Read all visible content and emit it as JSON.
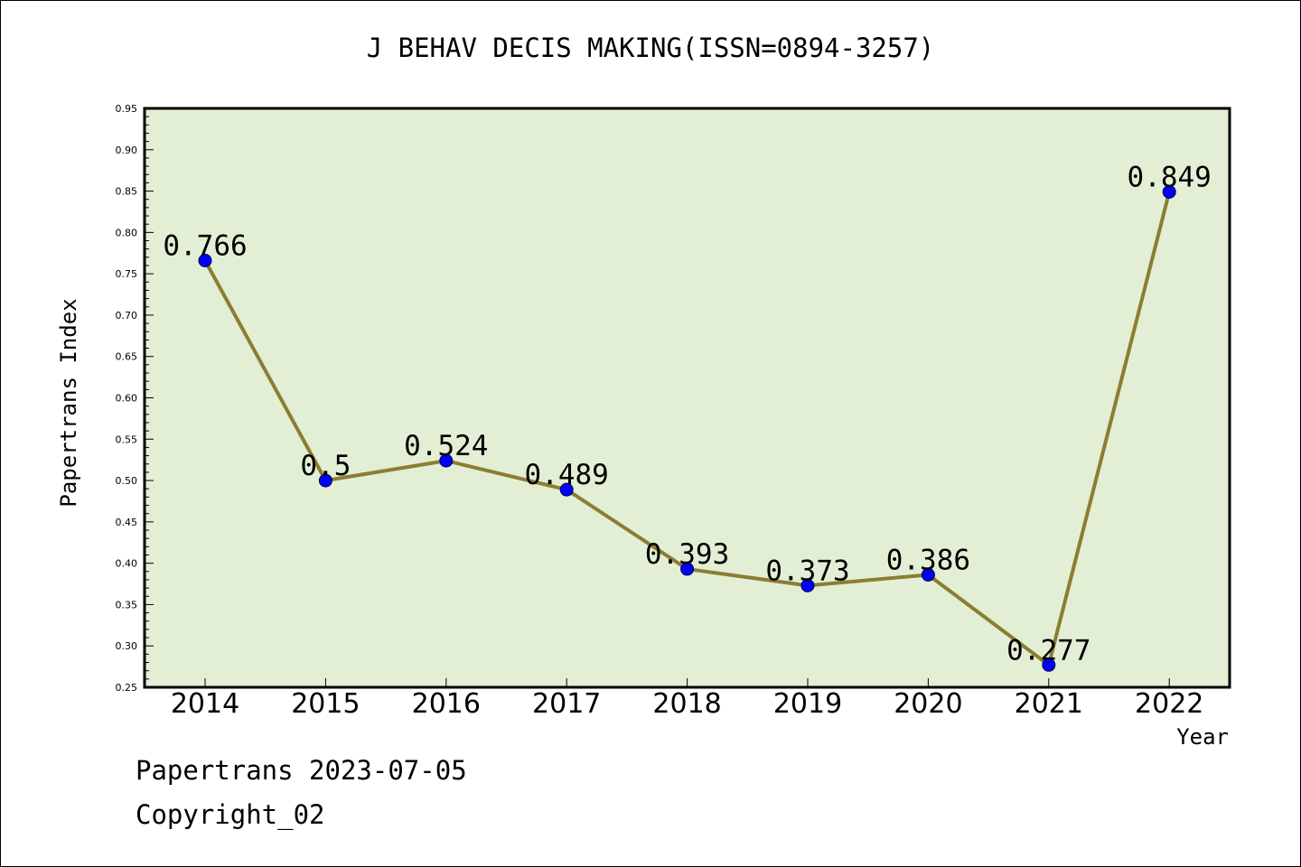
{
  "chart_data": {
    "type": "line",
    "title": "J BEHAV DECIS MAKING(ISSN=0894-3257)",
    "xlabel": "Year",
    "ylabel": "Papertrans Index",
    "categories": [
      "2014",
      "2015",
      "2016",
      "2017",
      "2018",
      "2019",
      "2020",
      "2021",
      "2022"
    ],
    "series": [
      {
        "values": [
          0.766,
          0.5,
          0.524,
          0.489,
          0.393,
          0.373,
          0.386,
          0.277,
          0.849
        ],
        "labels": [
          "0.766",
          "0.5",
          "0.524",
          "0.489",
          "0.393",
          "0.373",
          "0.386",
          "0.277",
          "0.849"
        ],
        "line_color": "#8b7d32",
        "marker_color": "#0000ff"
      }
    ],
    "ylim": [
      0.25,
      0.95
    ],
    "yticks": [
      "0.25",
      "0.30",
      "0.35",
      "0.40",
      "0.45",
      "0.50",
      "0.55",
      "0.60",
      "0.65",
      "0.70",
      "0.75",
      "0.80",
      "0.85",
      "0.90",
      "0.95"
    ],
    "plot_background": "#e2efd4",
    "grid": false
  },
  "footer": {
    "date_text": "Papertrans 2023-07-05",
    "copyright_text": "Copyright_02"
  }
}
